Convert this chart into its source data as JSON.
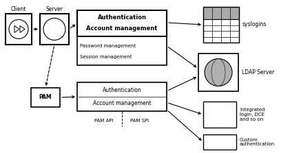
{
  "bg_color": "#ffffff",
  "fig_width": 4.21,
  "fig_height": 2.23,
  "client_label": "Client",
  "server_label": "Server",
  "pam_label": "PAM",
  "auth_bold": "Authentication",
  "acct_bold": "Account management",
  "pwd_mgmt": "Password management",
  "sess_mgmt": "Session management",
  "pam_auth": "Authentication",
  "pam_acct": "Account management",
  "syslogins_label": "syslogins",
  "ldap_label": "LDAP Server",
  "integrated_label": "Integrated\nlogin, DCE\nand so on",
  "custom_label": "Custom\nauthentication",
  "pam_api_label": "PAM API",
  "pam_spi_label": "PAM SPI",
  "font_size": 5.5,
  "bold_font_size": 6.0,
  "label_font_size": 5.5,
  "ec": "#000000",
  "gray_fill": "#c8c8c8",
  "syslogins_fill": "#b8b8b8"
}
